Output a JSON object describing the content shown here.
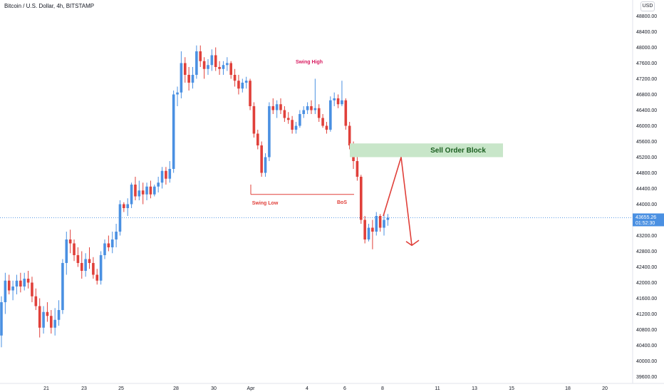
{
  "header": {
    "symbol_title": "Bitcoin / U.S. Dollar, 4h, BITSTAMP",
    "currency": "USD"
  },
  "chart_data": {
    "type": "candlestick",
    "title": "Bitcoin / U.S. Dollar, 4h, BITSTAMP",
    "y_axis": {
      "ticks": [
        "48800.00",
        "48400.00",
        "48000.00",
        "47600.00",
        "47200.00",
        "46800.00",
        "46400.00",
        "46000.00",
        "45600.00",
        "45200.00",
        "44800.00",
        "44400.00",
        "44000.00",
        "43600.00",
        "43200.00",
        "42800.00",
        "42400.00",
        "42000.00",
        "41600.00",
        "41200.00",
        "40800.00",
        "40400.00",
        "40000.00",
        "39600.00"
      ],
      "range": [
        39500,
        49000
      ]
    },
    "x_axis": {
      "ticks": [
        "21",
        "23",
        "25",
        "28",
        "30",
        "Apr",
        "4",
        "6",
        "8",
        "11",
        "13",
        "15",
        "18",
        "20"
      ]
    },
    "last_price": {
      "value": 43655.26,
      "label": "43655.26",
      "countdown": "01:52:30"
    },
    "candles": [
      [
        40650,
        41650,
        40350,
        41500
      ],
      [
        41500,
        42250,
        41200,
        42050
      ],
      [
        42050,
        42200,
        41700,
        41800
      ],
      [
        41800,
        42050,
        41550,
        41900
      ],
      [
        41900,
        42200,
        41700,
        42050
      ],
      [
        42050,
        42250,
        41750,
        41900
      ],
      [
        41900,
        42250,
        41800,
        42100
      ],
      [
        42100,
        42300,
        41850,
        42000
      ],
      [
        42000,
        42150,
        41500,
        41650
      ],
      [
        41650,
        41850,
        41300,
        41400
      ],
      [
        41400,
        41600,
        40600,
        40850
      ],
      [
        40850,
        41400,
        40700,
        41250
      ],
      [
        41250,
        41500,
        41000,
        41150
      ],
      [
        41150,
        41300,
        40700,
        40850
      ],
      [
        40850,
        41350,
        40650,
        41050
      ],
      [
        41050,
        41550,
        40900,
        41300
      ],
      [
        41300,
        42600,
        41200,
        42500
      ],
      [
        42500,
        43300,
        42200,
        43100
      ],
      [
        43100,
        43350,
        42750,
        43000
      ],
      [
        43000,
        43100,
        42550,
        42700
      ],
      [
        42700,
        42900,
        42400,
        42500
      ],
      [
        42500,
        42800,
        42100,
        42300
      ],
      [
        42300,
        42750,
        42150,
        42600
      ],
      [
        42600,
        42900,
        42350,
        42500
      ],
      [
        42500,
        42650,
        42100,
        42200
      ],
      [
        42200,
        42350,
        41950,
        42050
      ],
      [
        42050,
        42800,
        41950,
        42700
      ],
      [
        42700,
        43100,
        42600,
        43000
      ],
      [
        43000,
        43200,
        42800,
        42900
      ],
      [
        42900,
        43300,
        42750,
        43100
      ],
      [
        43100,
        43500,
        42900,
        43300
      ],
      [
        43300,
        44100,
        43200,
        44000
      ],
      [
        44000,
        44050,
        43800,
        43900
      ],
      [
        43900,
        44150,
        43700,
        44000
      ],
      [
        44000,
        44550,
        43900,
        44500
      ],
      [
        44500,
        44700,
        44100,
        44200
      ],
      [
        44200,
        44600,
        44100,
        44350
      ],
      [
        44350,
        44550,
        44000,
        44250
      ],
      [
        44250,
        44550,
        44100,
        44450
      ],
      [
        44450,
        44600,
        44150,
        44250
      ],
      [
        44250,
        44500,
        44200,
        44450
      ],
      [
        44450,
        44700,
        44300,
        44550
      ],
      [
        44550,
        44950,
        44400,
        44850
      ],
      [
        44850,
        44950,
        44500,
        44650
      ],
      [
        44650,
        45100,
        44550,
        44900
      ],
      [
        44900,
        46900,
        44800,
        46800
      ],
      [
        46800,
        47000,
        46500,
        46850
      ],
      [
        46850,
        47900,
        46700,
        47600
      ],
      [
        47600,
        47750,
        47100,
        47300
      ],
      [
        47300,
        47500,
        46900,
        47100
      ],
      [
        47100,
        47500,
        46950,
        47300
      ],
      [
        47300,
        48050,
        47200,
        47900
      ],
      [
        47900,
        48050,
        47500,
        47650
      ],
      [
        47650,
        47750,
        47200,
        47450
      ],
      [
        47450,
        47700,
        47300,
        47550
      ],
      [
        47550,
        47950,
        47400,
        47800
      ],
      [
        47800,
        48000,
        47400,
        47500
      ],
      [
        47500,
        47650,
        47300,
        47450
      ],
      [
        47450,
        47650,
        47300,
        47550
      ],
      [
        47550,
        47750,
        47400,
        47600
      ],
      [
        47600,
        47650,
        47200,
        47300
      ],
      [
        47300,
        47450,
        47000,
        47150
      ],
      [
        47150,
        47300,
        46800,
        46950
      ],
      [
        46950,
        47200,
        46850,
        47100
      ],
      [
        47100,
        47250,
        46950,
        47150
      ],
      [
        47150,
        47200,
        46400,
        46500
      ],
      [
        46500,
        46600,
        45700,
        45800
      ],
      [
        45800,
        45900,
        45400,
        45500
      ],
      [
        45500,
        45600,
        44700,
        44800
      ],
      [
        44800,
        45300,
        44700,
        45200
      ],
      [
        45200,
        46600,
        45100,
        46500
      ],
      [
        46500,
        46700,
        46300,
        46400
      ],
      [
        46400,
        46650,
        46200,
        46550
      ],
      [
        46550,
        46700,
        46300,
        46400
      ],
      [
        46400,
        46500,
        46100,
        46200
      ],
      [
        46200,
        46350,
        46050,
        46150
      ],
      [
        46150,
        46250,
        45800,
        45900
      ],
      [
        45900,
        46100,
        45800,
        46000
      ],
      [
        46000,
        46400,
        45950,
        46300
      ],
      [
        46300,
        46500,
        46200,
        46400
      ],
      [
        46400,
        46600,
        46300,
        46500
      ],
      [
        46500,
        46650,
        46300,
        46400
      ],
      [
        46400,
        47200,
        46300,
        46450
      ],
      [
        46450,
        46550,
        46100,
        46200
      ],
      [
        46200,
        46300,
        45950,
        46000
      ],
      [
        46000,
        46100,
        45800,
        45900
      ],
      [
        45900,
        46750,
        45850,
        46650
      ],
      [
        46650,
        46850,
        46500,
        46700
      ],
      [
        46700,
        46800,
        46450,
        46550
      ],
      [
        46550,
        47150,
        46500,
        46650
      ],
      [
        46650,
        46700,
        45900,
        46000
      ],
      [
        46000,
        46100,
        45400,
        45500
      ],
      [
        45500,
        45600,
        44900,
        45100
      ],
      [
        45100,
        45200,
        44600,
        44700
      ],
      [
        44700,
        44750,
        43500,
        43600
      ],
      [
        43600,
        43700,
        43000,
        43100
      ],
      [
        43100,
        43500,
        43050,
        43400
      ],
      [
        43400,
        43600,
        42850,
        43300
      ],
      [
        43300,
        43800,
        43200,
        43700
      ],
      [
        43700,
        43750,
        43300,
        43400
      ],
      [
        43400,
        43800,
        43200,
        43600
      ],
      [
        43600,
        43750,
        43450,
        43655
      ]
    ],
    "annotations": {
      "swing_high": "Swing High",
      "swing_low": "Swing Low",
      "bos": "BoS",
      "sell_order_block": "Sell Order Block",
      "sell_zone": [
        45200,
        45550
      ]
    },
    "colors": {
      "up": "#4a90e2",
      "down": "#e0403a",
      "zone": "#c8e6c9",
      "last_price": "#4a90e2"
    }
  }
}
